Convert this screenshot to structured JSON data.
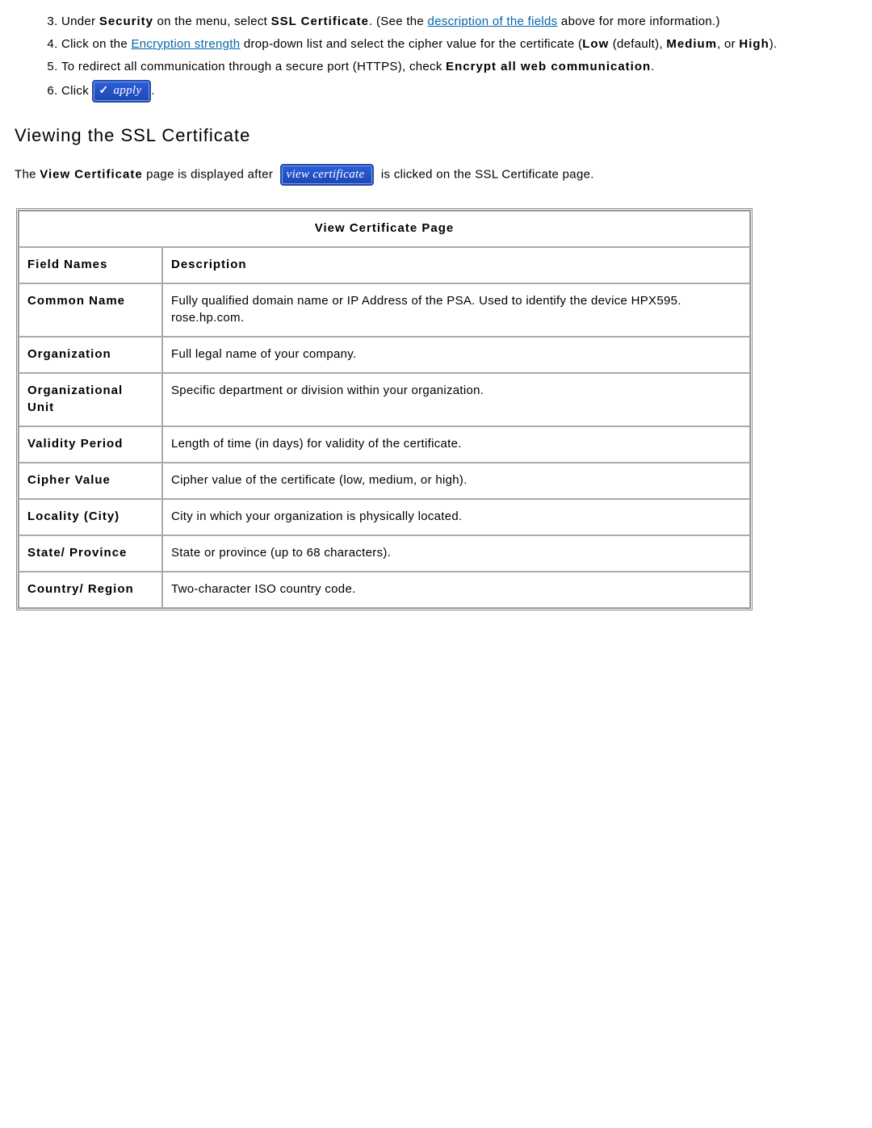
{
  "list": {
    "start": 3,
    "items": [
      {
        "pre": "Under ",
        "term1": "Security",
        "mid1": " on the menu, select ",
        "term2": "SSL Certificate",
        "post1": ". (See the ",
        "link": "description of the fields",
        "post2": " above for more information.)"
      },
      {
        "pre": "Click on the ",
        "link": "Encryption strength",
        "mid": " drop-down list and select the cipher value for the certificate (",
        "term1": "Low",
        "post1": " (default), ",
        "term2": "Medium",
        "post2": ", or ",
        "term3": "High",
        "post3": ")."
      },
      {
        "pre": "To redirect all communication through a secure port (HTTPS), check ",
        "term1": "Encrypt all web communication",
        "post": "."
      },
      {
        "pre": "Click ",
        "button": "apply",
        "post": "."
      }
    ]
  },
  "section_heading": "Viewing the SSL Certificate",
  "intro": {
    "pre": "The ",
    "term": "View Certificate",
    "mid": " page is displayed after ",
    "button": "view certificate",
    "post": " is clicked on the SSL Certificate page."
  },
  "table": {
    "caption": "View Certificate Page",
    "col1": "Field Names",
    "col2": "Description",
    "rows": [
      {
        "field": "Common Name",
        "desc": "Fully qualified domain name or IP Address of the PSA. Used to identify the device HPX595. rose.hp.com."
      },
      {
        "field": "Organization",
        "desc": "Full legal name of your company."
      },
      {
        "field": "Organizational Unit",
        "desc": "Specific department or division within your organization."
      },
      {
        "field": "Validity Period",
        "desc": "Length of time (in days) for validity of the certificate."
      },
      {
        "field": "Cipher Value",
        "desc": "Cipher value of the certificate (low, medium, or high)."
      },
      {
        "field": "Locality (City)",
        "desc": "City in which your organization is physically located."
      },
      {
        "field": "State/ Province",
        "desc": "State or province (up to 68 characters)."
      },
      {
        "field": "Country/ Region",
        "desc": "Two-character ISO country code."
      }
    ]
  }
}
